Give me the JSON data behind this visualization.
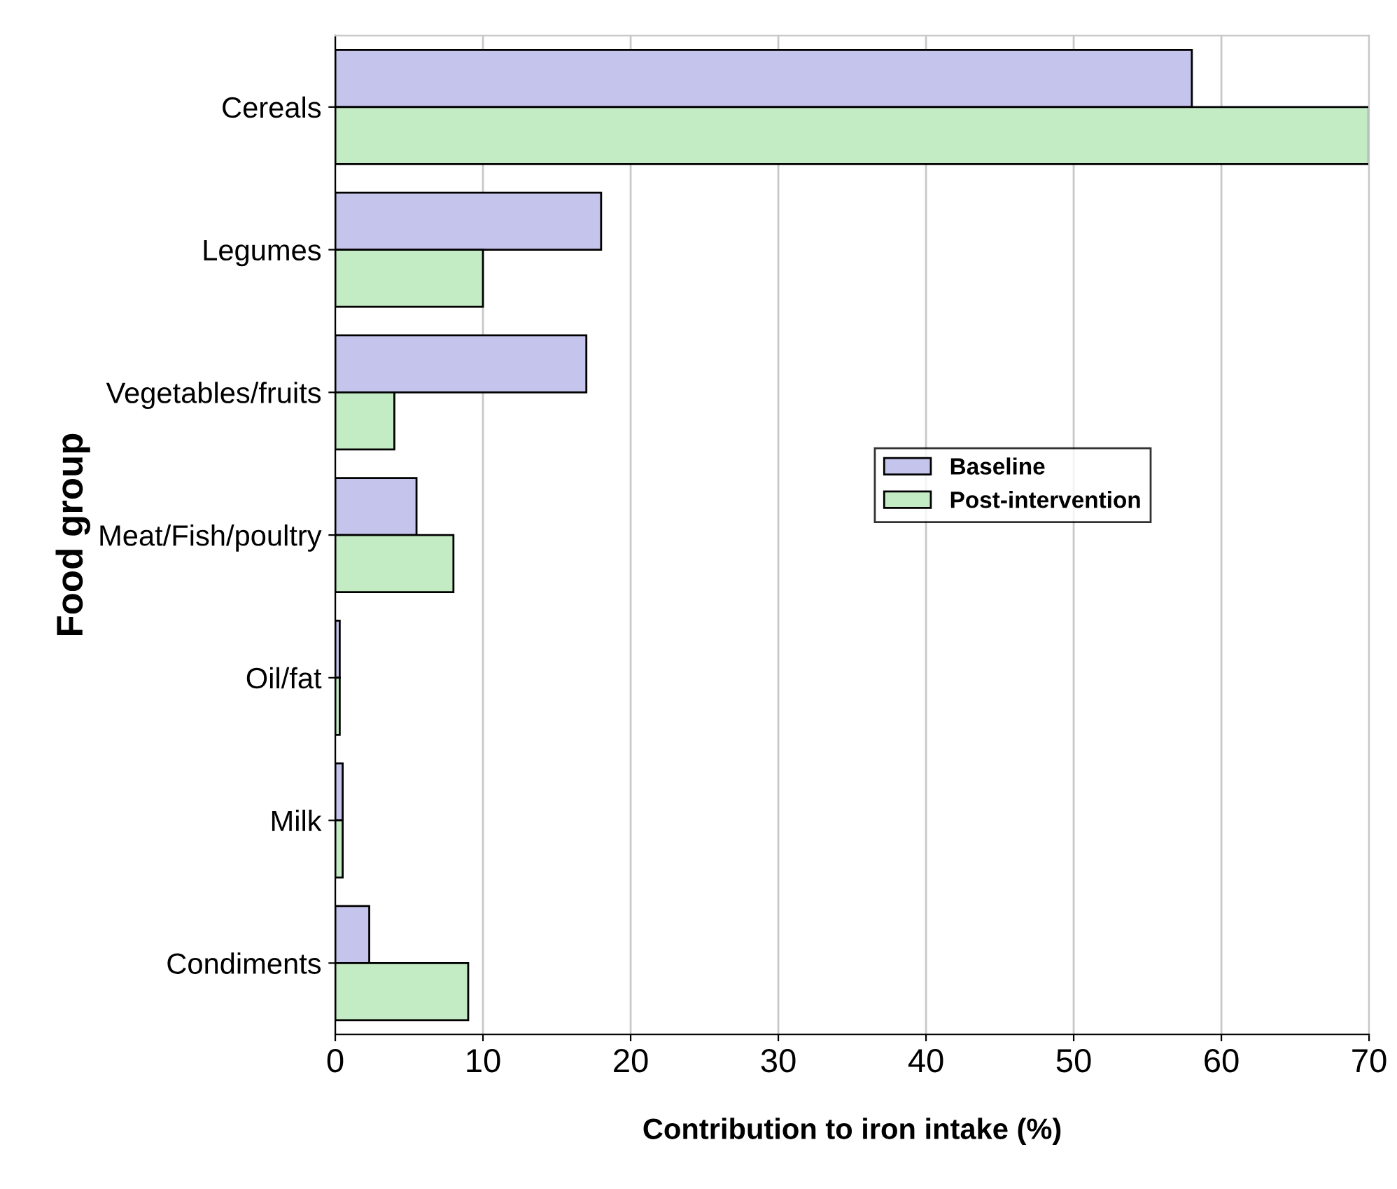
{
  "chart_data": {
    "type": "bar",
    "orientation": "horizontal",
    "xlabel": "Contribution to iron intake (%)",
    "ylabel": "Food group",
    "categories": [
      "Cereals",
      "Legumes",
      "Vegetables/fruits",
      "Meat/Fish/poultry",
      "Oil/fat",
      "Milk",
      "Condiments"
    ],
    "series": [
      {
        "name": "Baseline",
        "color": "#c4c4ec",
        "values": [
          58,
          18,
          17,
          5.5,
          0.3,
          0.5,
          2.3
        ]
      },
      {
        "name": "Post-intervention",
        "color": "#c4ecc4",
        "values": [
          70,
          10,
          4,
          8,
          0.3,
          0.5,
          9
        ]
      }
    ],
    "xlim": [
      0,
      70
    ],
    "xticks": [
      0,
      10,
      20,
      30,
      40,
      50,
      60,
      70
    ],
    "grid": "x",
    "legend": "right"
  }
}
